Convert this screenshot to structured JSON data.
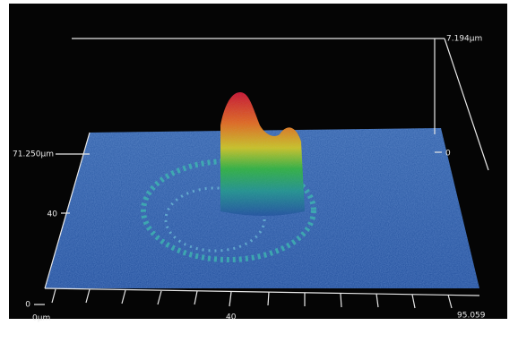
{
  "labels": {
    "z_max": "7.194µm",
    "y_max": "71.250µm",
    "z_zero": "0",
    "y_mid": "40",
    "y_zero": "0",
    "x_zero": "0µm",
    "x_mid": "40",
    "x_max": "95.059"
  }
}
